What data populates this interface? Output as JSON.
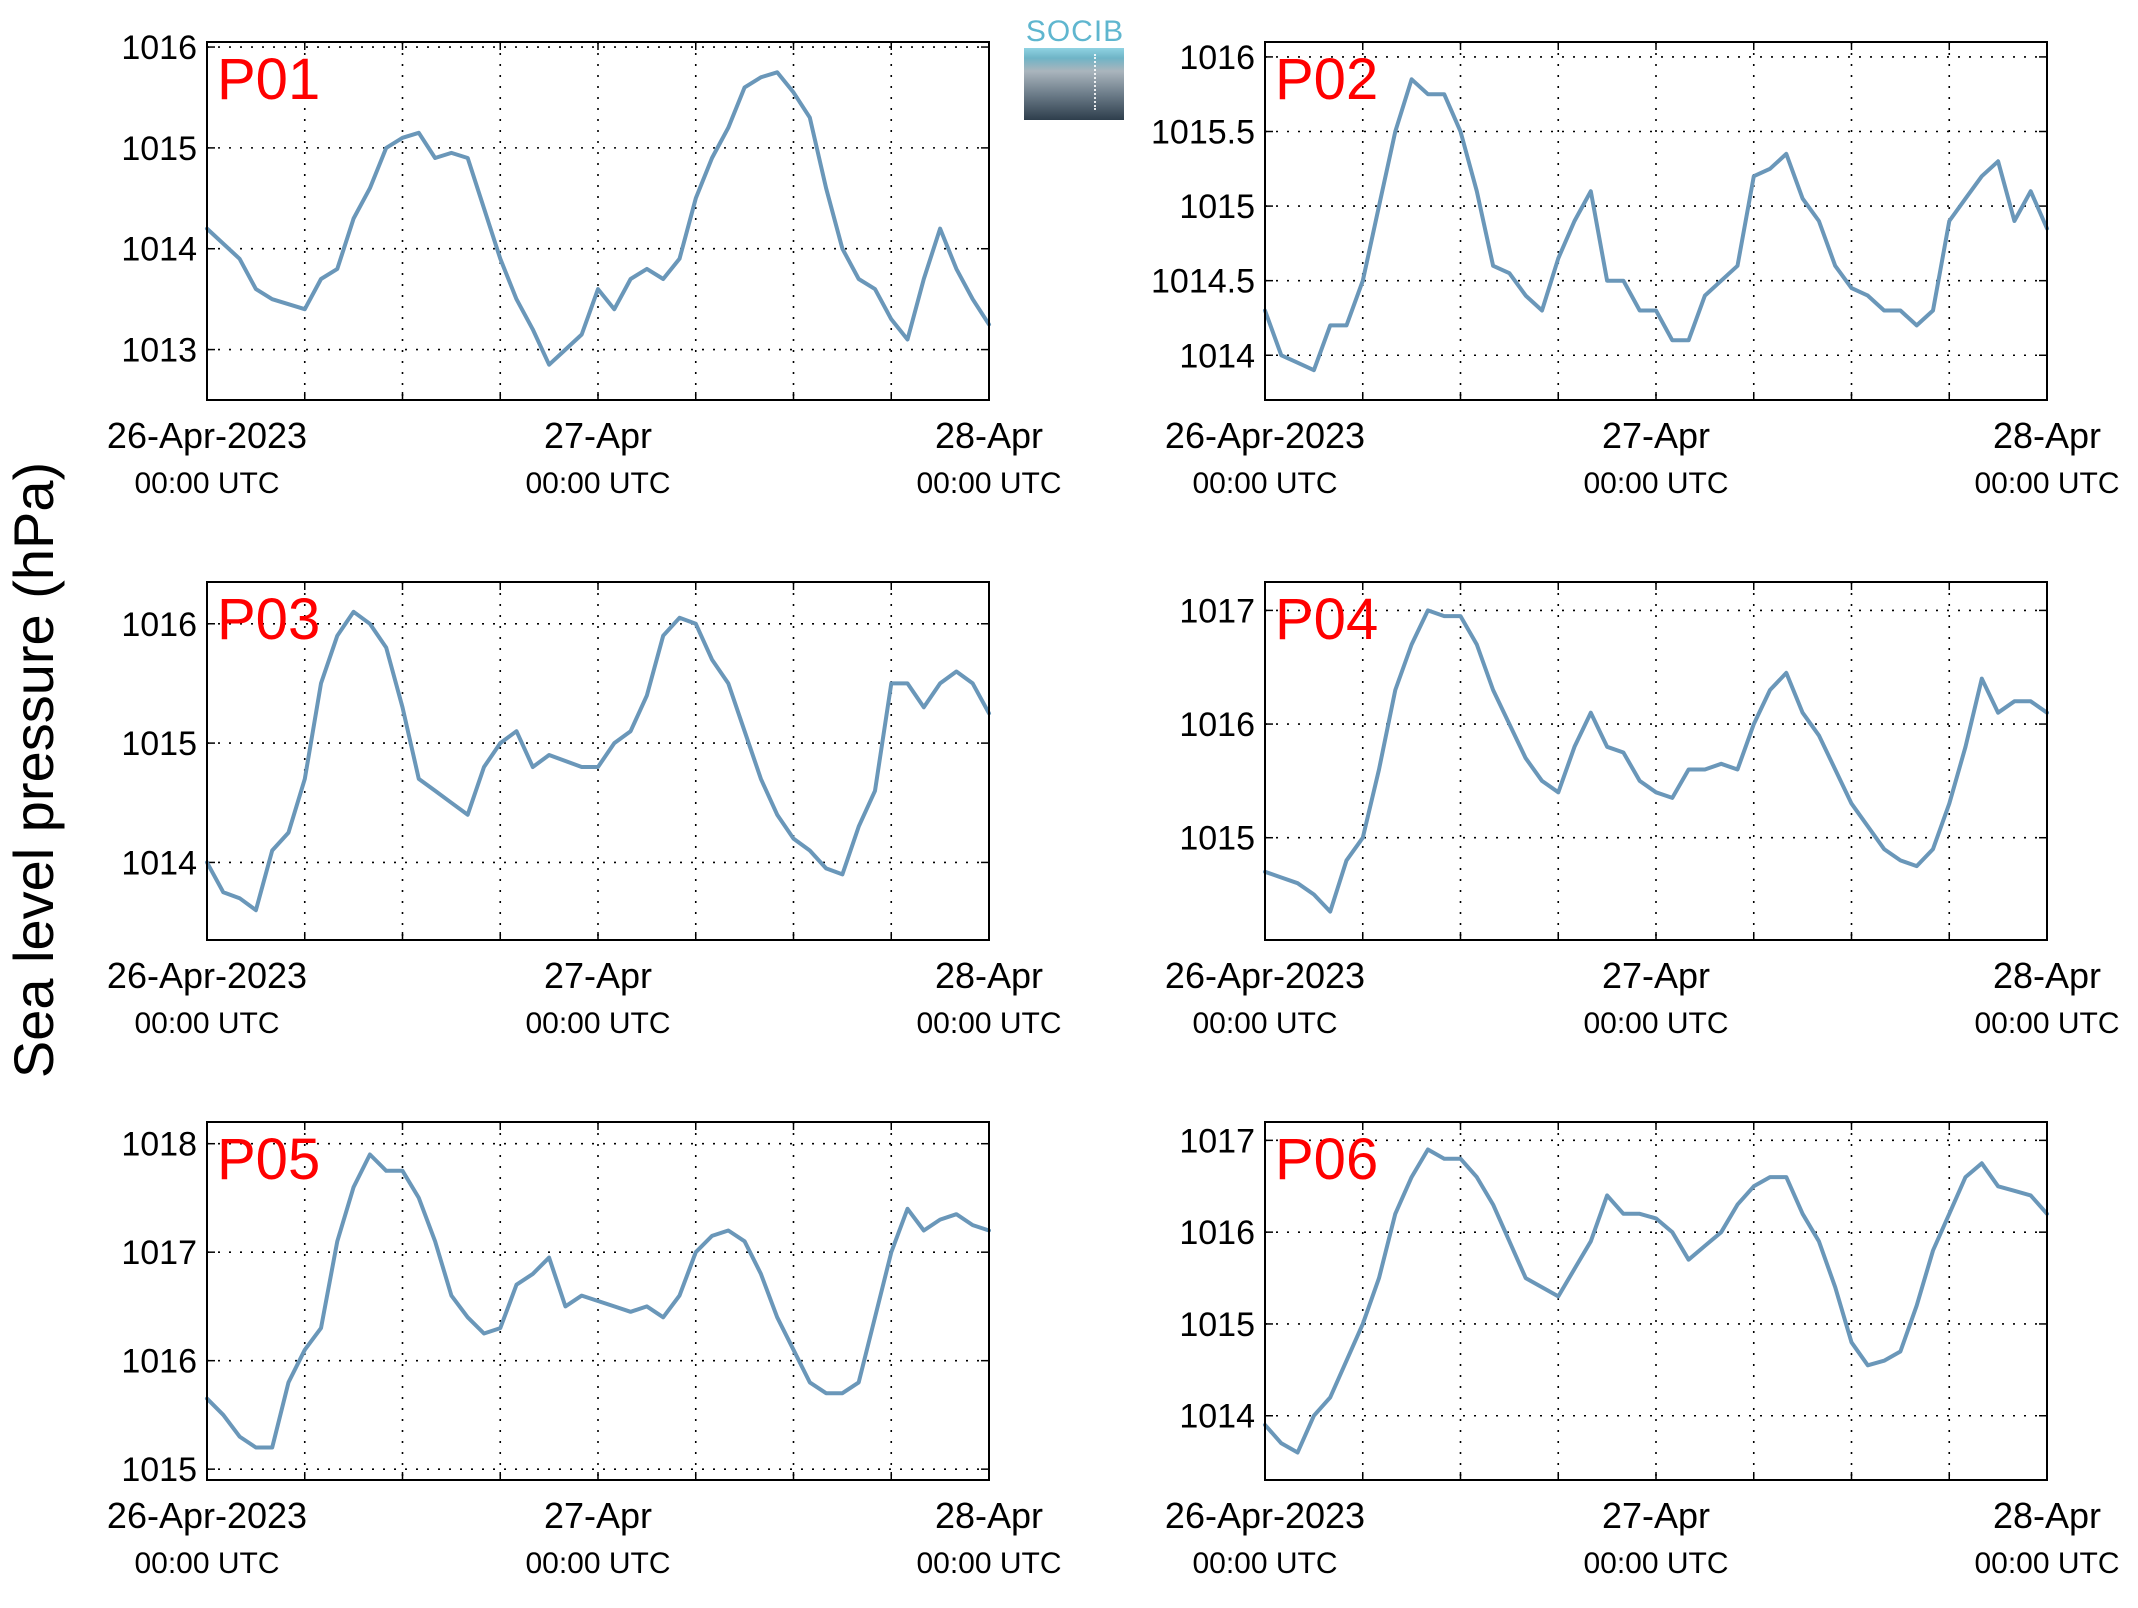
{
  "figure": {
    "ylabel": "Sea level pressure (hPa)",
    "logo_text": "SOCIB"
  },
  "colors": {
    "line": "#6a97b9",
    "panel_label": "#ff0000",
    "axis": "#000000",
    "grid": "#000000"
  },
  "chart_data": [
    {
      "type": "line",
      "label": "P01",
      "series": [
        {
          "x_hours": [
            0,
            2,
            3,
            4,
            6,
            7,
            8,
            9,
            10,
            11,
            12,
            13,
            14,
            15,
            16,
            17,
            18,
            19,
            20,
            21,
            22,
            23,
            24,
            25,
            26,
            27,
            28,
            29,
            30,
            31,
            32,
            33,
            34,
            35,
            36,
            37,
            38,
            39,
            40,
            41,
            42,
            43,
            44,
            45,
            46,
            47,
            48
          ],
          "y": [
            1014.2,
            1013.9,
            1013.6,
            1013.5,
            1013.4,
            1013.7,
            1013.8,
            1014.3,
            1014.6,
            1015.0,
            1015.1,
            1015.15,
            1014.9,
            1014.95,
            1014.9,
            1014.4,
            1013.9,
            1013.5,
            1013.2,
            1012.85,
            1013.0,
            1013.15,
            1013.6,
            1013.4,
            1013.7,
            1013.8,
            1013.7,
            1013.9,
            1014.5,
            1014.9,
            1015.2,
            1015.6,
            1015.7,
            1015.75,
            1015.55,
            1015.3,
            1014.6,
            1014.0,
            1013.7,
            1013.6,
            1013.3,
            1013.1,
            1013.7,
            1014.2,
            1013.8,
            1013.5,
            1013.25
          ]
        }
      ],
      "x_ticks": [
        0,
        6,
        12,
        18,
        24,
        30,
        36,
        42,
        48
      ],
      "x_tick_labels": [
        {
          "hour": 0,
          "line1": "26-Apr-2023",
          "line2": "00:00 UTC"
        },
        {
          "hour": 24,
          "line1": "27-Apr",
          "line2": "00:00 UTC"
        },
        {
          "hour": 48,
          "line1": "28-Apr",
          "line2": "00:00 UTC"
        }
      ],
      "ylim": [
        1012.5,
        1016.05
      ],
      "y_ticks": [
        1013,
        1014,
        1015,
        1016
      ],
      "y_tick_labels": [
        "1013",
        "1014",
        "1015",
        "1016"
      ],
      "grid": true
    },
    {
      "type": "line",
      "label": "P02",
      "series": [
        {
          "x_hours": [
            0,
            1,
            2,
            3,
            4,
            5,
            6,
            7,
            8,
            9,
            10,
            11,
            12,
            13,
            14,
            15,
            16,
            17,
            18,
            19,
            20,
            21,
            22,
            23,
            24,
            25,
            26,
            27,
            28,
            29,
            30,
            31,
            32,
            33,
            34,
            35,
            36,
            37,
            38,
            39,
            40,
            41,
            42,
            43,
            44,
            45,
            46,
            47,
            48
          ],
          "y": [
            1014.3,
            1014.0,
            1013.95,
            1013.9,
            1014.2,
            1014.2,
            1014.5,
            1015.0,
            1015.5,
            1015.85,
            1015.75,
            1015.75,
            1015.5,
            1015.1,
            1014.6,
            1014.55,
            1014.4,
            1014.3,
            1014.65,
            1014.9,
            1015.1,
            1014.5,
            1014.5,
            1014.3,
            1014.3,
            1014.1,
            1014.1,
            1014.4,
            1014.5,
            1014.6,
            1015.2,
            1015.25,
            1015.35,
            1015.05,
            1014.9,
            1014.6,
            1014.45,
            1014.4,
            1014.3,
            1014.3,
            1014.2,
            1014.3,
            1014.9,
            1015.05,
            1015.2,
            1015.3,
            1014.9,
            1015.1,
            1014.85
          ]
        }
      ],
      "x_ticks": [
        0,
        6,
        12,
        18,
        24,
        30,
        36,
        42,
        48
      ],
      "x_tick_labels": [
        {
          "hour": 0,
          "line1": "26-Apr-2023",
          "line2": "00:00 UTC"
        },
        {
          "hour": 24,
          "line1": "27-Apr",
          "line2": "00:00 UTC"
        },
        {
          "hour": 48,
          "line1": "28-Apr",
          "line2": "00:00 UTC"
        }
      ],
      "ylim": [
        1013.7,
        1016.1
      ],
      "y_ticks": [
        1014,
        1014.5,
        1015,
        1015.5,
        1016
      ],
      "y_tick_labels": [
        "1014",
        "1014.5",
        "1015",
        "1015.5",
        "1016"
      ],
      "grid": true
    },
    {
      "type": "line",
      "label": "P03",
      "series": [
        {
          "x_hours": [
            0,
            1,
            2,
            3,
            4,
            5,
            6,
            7,
            8,
            9,
            10,
            11,
            12,
            13,
            14,
            15,
            16,
            17,
            18,
            19,
            20,
            21,
            22,
            23,
            24,
            25,
            26,
            27,
            28,
            29,
            30,
            31,
            32,
            33,
            34,
            35,
            36,
            37,
            38,
            39,
            40,
            41,
            42,
            43,
            44,
            45,
            46,
            47,
            48
          ],
          "y": [
            1014.0,
            1013.75,
            1013.7,
            1013.6,
            1014.1,
            1014.25,
            1014.7,
            1015.5,
            1015.9,
            1016.1,
            1016.0,
            1015.8,
            1015.3,
            1014.7,
            1014.6,
            1014.5,
            1014.4,
            1014.8,
            1015.0,
            1015.1,
            1014.8,
            1014.9,
            1014.85,
            1014.8,
            1014.8,
            1015.0,
            1015.1,
            1015.4,
            1015.9,
            1016.05,
            1016.0,
            1015.7,
            1015.5,
            1015.1,
            1014.7,
            1014.4,
            1014.2,
            1014.1,
            1013.95,
            1013.9,
            1014.3,
            1014.6,
            1015.5,
            1015.5,
            1015.3,
            1015.5,
            1015.6,
            1015.5,
            1015.25
          ]
        }
      ],
      "x_ticks": [
        0,
        6,
        12,
        18,
        24,
        30,
        36,
        42,
        48
      ],
      "x_tick_labels": [
        {
          "hour": 0,
          "line1": "26-Apr-2023",
          "line2": "00:00 UTC"
        },
        {
          "hour": 24,
          "line1": "27-Apr",
          "line2": "00:00 UTC"
        },
        {
          "hour": 48,
          "line1": "28-Apr",
          "line2": "00:00 UTC"
        }
      ],
      "ylim": [
        1013.35,
        1016.35
      ],
      "y_ticks": [
        1014,
        1015,
        1016
      ],
      "y_tick_labels": [
        "1014",
        "1015",
        "1016"
      ],
      "grid": true
    },
    {
      "type": "line",
      "label": "P04",
      "series": [
        {
          "x_hours": [
            0,
            1,
            2,
            3,
            4,
            5,
            6,
            7,
            8,
            9,
            10,
            11,
            12,
            13,
            14,
            15,
            16,
            17,
            18,
            19,
            20,
            21,
            22,
            23,
            24,
            25,
            26,
            27,
            28,
            29,
            30,
            31,
            32,
            33,
            34,
            35,
            36,
            37,
            38,
            39,
            40,
            41,
            42,
            43,
            44,
            45,
            46,
            47,
            48
          ],
          "y": [
            1014.7,
            1014.65,
            1014.6,
            1014.5,
            1014.35,
            1014.8,
            1015.0,
            1015.6,
            1016.3,
            1016.7,
            1017.0,
            1016.95,
            1016.95,
            1016.7,
            1016.3,
            1016.0,
            1015.7,
            1015.5,
            1015.4,
            1015.8,
            1016.1,
            1015.8,
            1015.75,
            1015.5,
            1015.4,
            1015.35,
            1015.6,
            1015.6,
            1015.65,
            1015.6,
            1016.0,
            1016.3,
            1016.45,
            1016.1,
            1015.9,
            1015.6,
            1015.3,
            1015.1,
            1014.9,
            1014.8,
            1014.75,
            1014.9,
            1015.3,
            1015.8,
            1016.4,
            1016.1,
            1016.2,
            1016.2,
            1016.1
          ]
        }
      ],
      "x_ticks": [
        0,
        6,
        12,
        18,
        24,
        30,
        36,
        42,
        48
      ],
      "x_tick_labels": [
        {
          "hour": 0,
          "line1": "26-Apr-2023",
          "line2": "00:00 UTC"
        },
        {
          "hour": 24,
          "line1": "27-Apr",
          "line2": "00:00 UTC"
        },
        {
          "hour": 48,
          "line1": "28-Apr",
          "line2": "00:00 UTC"
        }
      ],
      "ylim": [
        1014.1,
        1017.25
      ],
      "y_ticks": [
        1015,
        1016,
        1017
      ],
      "y_tick_labels": [
        "1015",
        "1016",
        "1017"
      ],
      "grid": true
    },
    {
      "type": "line",
      "label": "P05",
      "series": [
        {
          "x_hours": [
            0,
            1,
            2,
            3,
            4,
            5,
            6,
            7,
            8,
            9,
            10,
            11,
            12,
            13,
            14,
            15,
            16,
            17,
            18,
            19,
            20,
            21,
            22,
            23,
            24,
            25,
            26,
            27,
            28,
            29,
            30,
            31,
            32,
            33,
            34,
            35,
            36,
            37,
            38,
            39,
            40,
            41,
            42,
            43,
            44,
            45,
            46,
            47,
            48
          ],
          "y": [
            1015.65,
            1015.5,
            1015.3,
            1015.2,
            1015.2,
            1015.8,
            1016.1,
            1016.3,
            1017.1,
            1017.6,
            1017.9,
            1017.75,
            1017.75,
            1017.5,
            1017.1,
            1016.6,
            1016.4,
            1016.25,
            1016.3,
            1016.7,
            1016.8,
            1016.95,
            1016.5,
            1016.6,
            1016.55,
            1016.5,
            1016.45,
            1016.5,
            1016.4,
            1016.6,
            1017.0,
            1017.15,
            1017.2,
            1017.1,
            1016.8,
            1016.4,
            1016.1,
            1015.8,
            1015.7,
            1015.7,
            1015.8,
            1016.4,
            1017.0,
            1017.4,
            1017.2,
            1017.3,
            1017.35,
            1017.25,
            1017.2
          ]
        }
      ],
      "x_ticks": [
        0,
        6,
        12,
        18,
        24,
        30,
        36,
        42,
        48
      ],
      "x_tick_labels": [
        {
          "hour": 0,
          "line1": "26-Apr-2023",
          "line2": "00:00 UTC"
        },
        {
          "hour": 24,
          "line1": "27-Apr",
          "line2": "00:00 UTC"
        },
        {
          "hour": 48,
          "line1": "28-Apr",
          "line2": "00:00 UTC"
        }
      ],
      "ylim": [
        1014.9,
        1018.2
      ],
      "y_ticks": [
        1015,
        1016,
        1017,
        1018
      ],
      "y_tick_labels": [
        "1015",
        "1016",
        "1017",
        "1018"
      ],
      "grid": true
    },
    {
      "type": "line",
      "label": "P06",
      "series": [
        {
          "x_hours": [
            0,
            1,
            2,
            3,
            4,
            5,
            6,
            7,
            8,
            9,
            10,
            11,
            12,
            13,
            14,
            15,
            16,
            17,
            18,
            19,
            20,
            21,
            22,
            23,
            24,
            25,
            26,
            27,
            28,
            29,
            30,
            31,
            32,
            33,
            34,
            35,
            36,
            37,
            38,
            39,
            40,
            41,
            42,
            43,
            44,
            45,
            46,
            47,
            48
          ],
          "y": [
            1013.9,
            1013.7,
            1013.6,
            1014.0,
            1014.2,
            1014.6,
            1015.0,
            1015.5,
            1016.2,
            1016.6,
            1016.9,
            1016.8,
            1016.8,
            1016.6,
            1016.3,
            1015.9,
            1015.5,
            1015.4,
            1015.3,
            1015.6,
            1015.9,
            1016.4,
            1016.2,
            1016.2,
            1016.15,
            1016.0,
            1015.7,
            1015.85,
            1016.0,
            1016.3,
            1016.5,
            1016.6,
            1016.6,
            1016.2,
            1015.9,
            1015.4,
            1014.8,
            1014.55,
            1014.6,
            1014.7,
            1015.2,
            1015.8,
            1016.2,
            1016.6,
            1016.75,
            1016.5,
            1016.45,
            1016.4,
            1016.2
          ]
        }
      ],
      "x_ticks": [
        0,
        6,
        12,
        18,
        24,
        30,
        36,
        42,
        48
      ],
      "x_tick_labels": [
        {
          "hour": 0,
          "line1": "26-Apr-2023",
          "line2": "00:00 UTC"
        },
        {
          "hour": 24,
          "line1": "27-Apr",
          "line2": "00:00 UTC"
        },
        {
          "hour": 48,
          "line1": "28-Apr",
          "line2": "00:00 UTC"
        }
      ],
      "ylim": [
        1013.3,
        1017.2
      ],
      "y_ticks": [
        1014,
        1015,
        1016,
        1017
      ],
      "y_tick_labels": [
        "1014",
        "1015",
        "1016",
        "1017"
      ],
      "grid": true
    }
  ]
}
